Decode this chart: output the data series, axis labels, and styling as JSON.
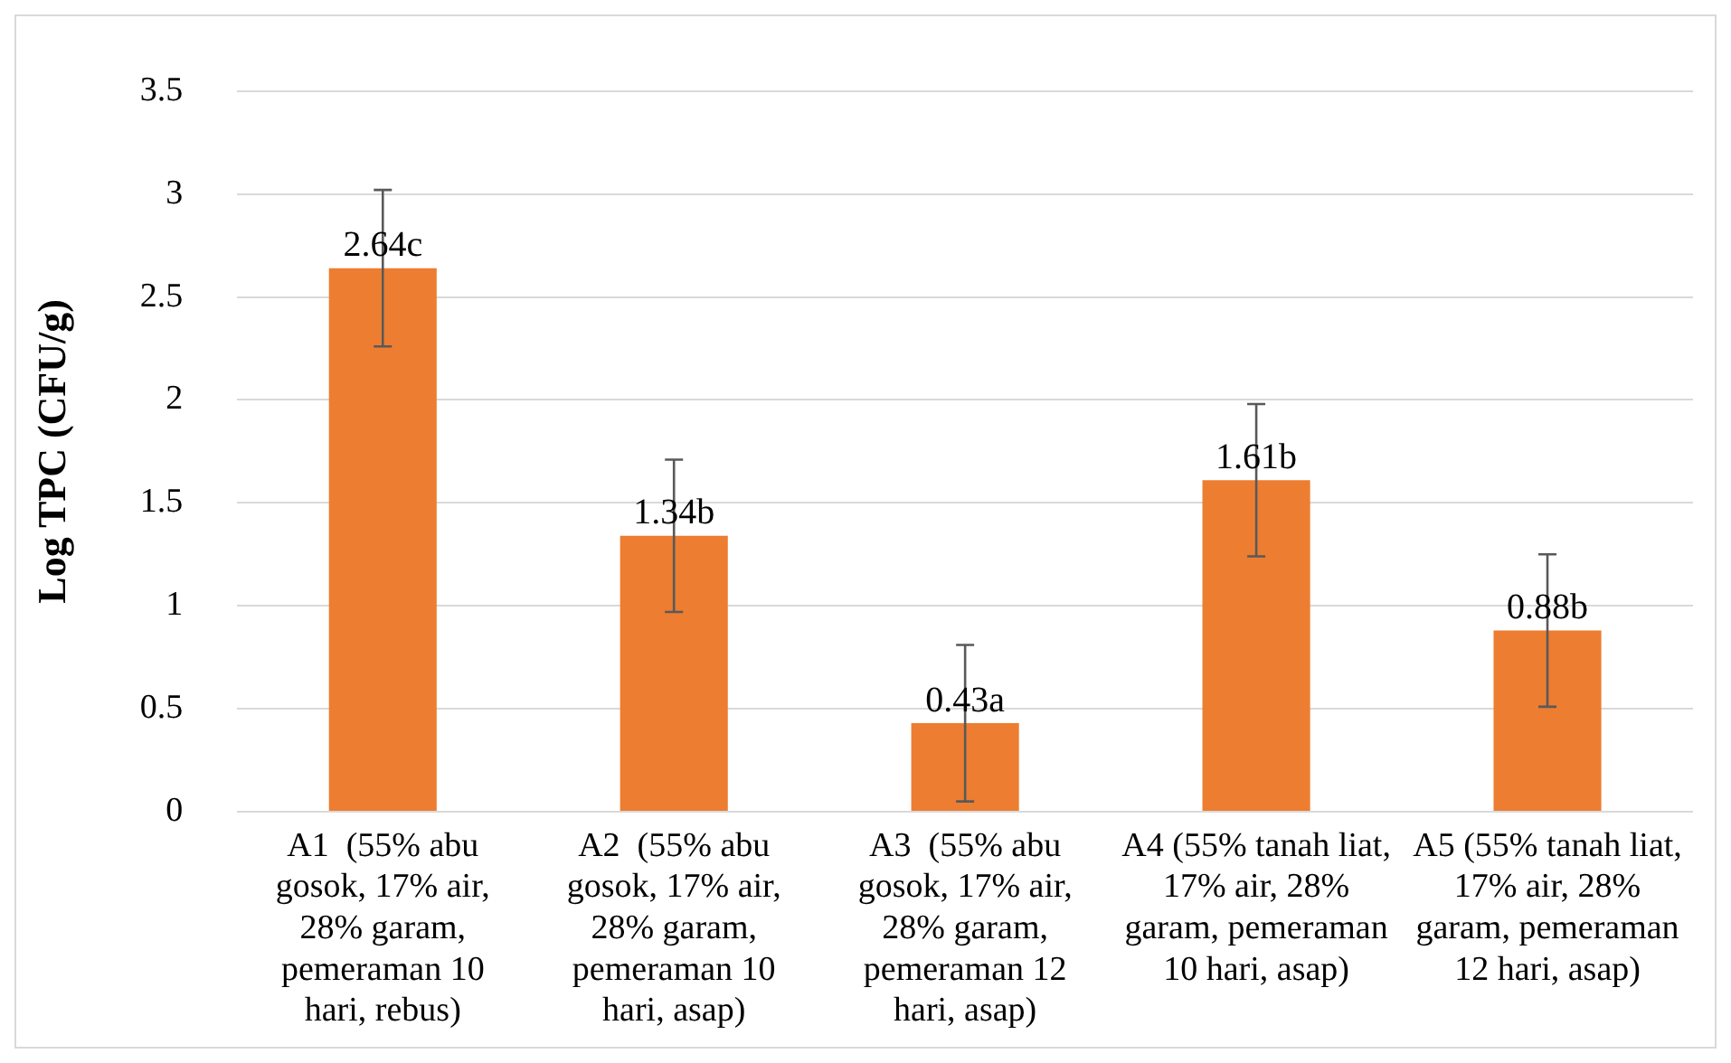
{
  "chart_data": {
    "type": "bar",
    "ylabel": "Log TPC (CFU/g)",
    "categories": [
      "A1  (55% abu gosok, 17% air, 28% garam, pemeraman 10 hari, rebus)",
      "A2  (55% abu gosok, 17% air, 28% garam, pemeraman 10 hari, asap)",
      "A3  (55% abu gosok, 17% air, 28% garam, pemeraman 12 hari, asap)",
      "A4 (55% tanah liat, 17% air, 28% garam, pemeraman 10 hari, asap)",
      "A5 (55% tanah liat, 17% air, 28% garam, pemeraman 12 hari, asap)"
    ],
    "values": [
      2.64,
      1.34,
      0.43,
      1.61,
      0.88
    ],
    "errors": [
      0.38,
      0.37,
      0.38,
      0.37,
      0.37
    ],
    "value_labels": [
      "2.64c",
      "1.34b",
      "0.43a",
      "1.61b",
      "0.88b"
    ],
    "color": "#ed7d31",
    "ylim": [
      0,
      3.5
    ],
    "yticks": [
      0,
      0.5,
      1,
      1.5,
      2,
      2.5,
      3,
      3.5
    ],
    "grid": "y",
    "legend": false
  }
}
